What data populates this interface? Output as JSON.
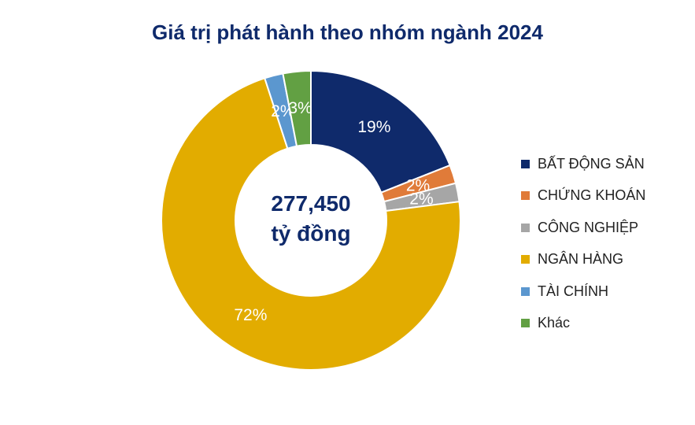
{
  "chart_data": {
    "type": "pie",
    "title": "Giá trị phát hành theo nhóm ngành 2024",
    "center_label": {
      "value": "277,450",
      "unit": "tỷ đồng"
    },
    "legend_position": "right",
    "data_labels_format": "percent",
    "slices": [
      {
        "label": "BẤT ĐỘNG SẢN",
        "value": 19,
        "data_label": "19%",
        "color": "#0f2a6b"
      },
      {
        "label": "CHỨNG KHOÁN",
        "value": 2,
        "data_label": "2%",
        "color": "#e07b39"
      },
      {
        "label": "CÔNG NGHIỆP",
        "value": 2,
        "data_label": "2%",
        "color": "#a6a6a6"
      },
      {
        "label": "NGÂN HÀNG",
        "value": 72,
        "data_label": "72%",
        "color": "#e2ac00"
      },
      {
        "label": "TÀI CHÍNH",
        "value": 2,
        "data_label": "2%",
        "color": "#5b97cf"
      },
      {
        "label": "Khác",
        "value": 3,
        "data_label": "3%",
        "color": "#62a043"
      }
    ]
  }
}
